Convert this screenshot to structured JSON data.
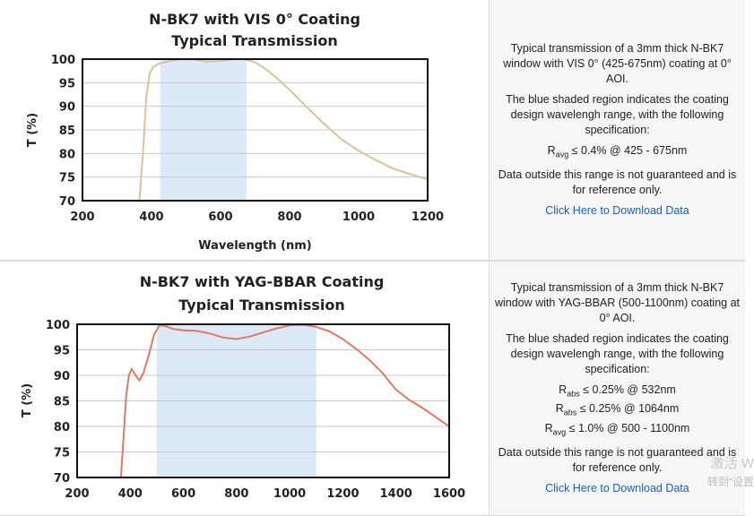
{
  "charts": [
    {
      "title_line1": "N-BK7 with VIS 0° Coating",
      "title_line2": "Typical Transmission",
      "ylabel": "T (%)",
      "xlabel": "Wavelength (nm)",
      "description": {
        "p1": "Typical transmission of a 3mm thick N-BK7 window with VIS 0° (425-675nm) coating at 0° AOI.",
        "p2": "The blue shaded region indicates the coating design wavelengh range, with the following specification:",
        "specs": [
          {
            "sym": "R",
            "sub": "avg",
            "text": "≤ 0.4% @ 425 - 675nm"
          }
        ],
        "p3": "Data outside this range is not guaranteed and is for reference only.",
        "link": "Click Here to Download Data"
      }
    },
    {
      "title_line1": "N-BK7 with YAG-BBAR Coating",
      "title_line2": "Typical Transmission",
      "ylabel": "T (%)",
      "xlabel": "",
      "description": {
        "p1": "Typical transmission of a 3mm thick N-BK7 window with YAG-BBAR (500-1100nm) coating at 0° AOI.",
        "p2": "The blue shaded region indicates the coating design wavelengh range, with the following specification:",
        "specs": [
          {
            "sym": "R",
            "sub": "abs",
            "text": "≤ 0.25% @ 532nm"
          },
          {
            "sym": "R",
            "sub": "abs",
            "text": "≤ 0.25% @ 1064nm"
          },
          {
            "sym": "R",
            "sub": "avg",
            "text": "≤ 1.0% @ 500 - 1100nm"
          }
        ],
        "p3": "Data outside this range is not guaranteed and is for reference only.",
        "link": "Click Here to Download Data"
      }
    }
  ],
  "watermark": {
    "line1": "激活 W",
    "line2": "转到“设置"
  },
  "chart_data": [
    {
      "type": "line",
      "title": "N-BK7 with VIS 0° Coating Typical Transmission",
      "xlabel": "Wavelength (nm)",
      "ylabel": "T (%)",
      "xlim": [
        200,
        1200
      ],
      "ylim": [
        70,
        100
      ],
      "xticks": [
        200,
        400,
        600,
        800,
        1000,
        1200
      ],
      "yticks": [
        70,
        75,
        80,
        85,
        90,
        95,
        100
      ],
      "grid": true,
      "color": "#d8c39c",
      "shaded_region": {
        "x": [
          425,
          675
        ],
        "color": "#dce9f6"
      },
      "series": [
        {
          "x": [
            365,
            375,
            385,
            395,
            405,
            415,
            425,
            440,
            460,
            480,
            500,
            520,
            540,
            560,
            580,
            600,
            620,
            640,
            660,
            675,
            700,
            725,
            750,
            800,
            850,
            900,
            950,
            1000,
            1050,
            1100,
            1150,
            1200
          ],
          "values": [
            70,
            80,
            92,
            97,
            98.3,
            98.8,
            99.1,
            99.4,
            99.7,
            99.9,
            100,
            99.9,
            99.7,
            99.5,
            99.5,
            99.6,
            99.8,
            100,
            100,
            99.9,
            99.3,
            98.2,
            96.8,
            93.5,
            89.8,
            86.3,
            83.0,
            80.6,
            78.6,
            76.8,
            75.6,
            74.5
          ]
        }
      ]
    },
    {
      "type": "line",
      "title": "N-BK7 with YAG-BBAR Coating Typical Transmission",
      "xlabel": "",
      "ylabel": "T (%)",
      "xlim": [
        200,
        1600
      ],
      "ylim": [
        70,
        100
      ],
      "xticks": [
        200,
        400,
        600,
        800,
        1000,
        1200,
        1400,
        1600
      ],
      "yticks": [
        70,
        75,
        80,
        85,
        90,
        95,
        100
      ],
      "grid": true,
      "color": "#e07868",
      "shaded_region": {
        "x": [
          500,
          1100
        ],
        "color": "#dce9f6"
      },
      "series": [
        {
          "x": [
            365,
            375,
            385,
            395,
            405,
            420,
            435,
            450,
            470,
            490,
            510,
            530,
            560,
            600,
            650,
            700,
            750,
            800,
            850,
            900,
            950,
            1000,
            1050,
            1100,
            1150,
            1200,
            1250,
            1300,
            1350,
            1400,
            1450,
            1500,
            1550,
            1600
          ],
          "values": [
            70,
            78,
            86,
            90,
            91.3,
            90,
            89,
            90.5,
            94,
            98,
            99.8,
            99.7,
            99.1,
            98.8,
            98.7,
            98.2,
            97.4,
            97.1,
            97.6,
            98.4,
            99.2,
            99.8,
            99.9,
            99.5,
            98.6,
            97.1,
            95.2,
            93.0,
            90.4,
            87.2,
            85.2,
            83.6,
            81.8,
            80.0
          ]
        }
      ]
    }
  ]
}
